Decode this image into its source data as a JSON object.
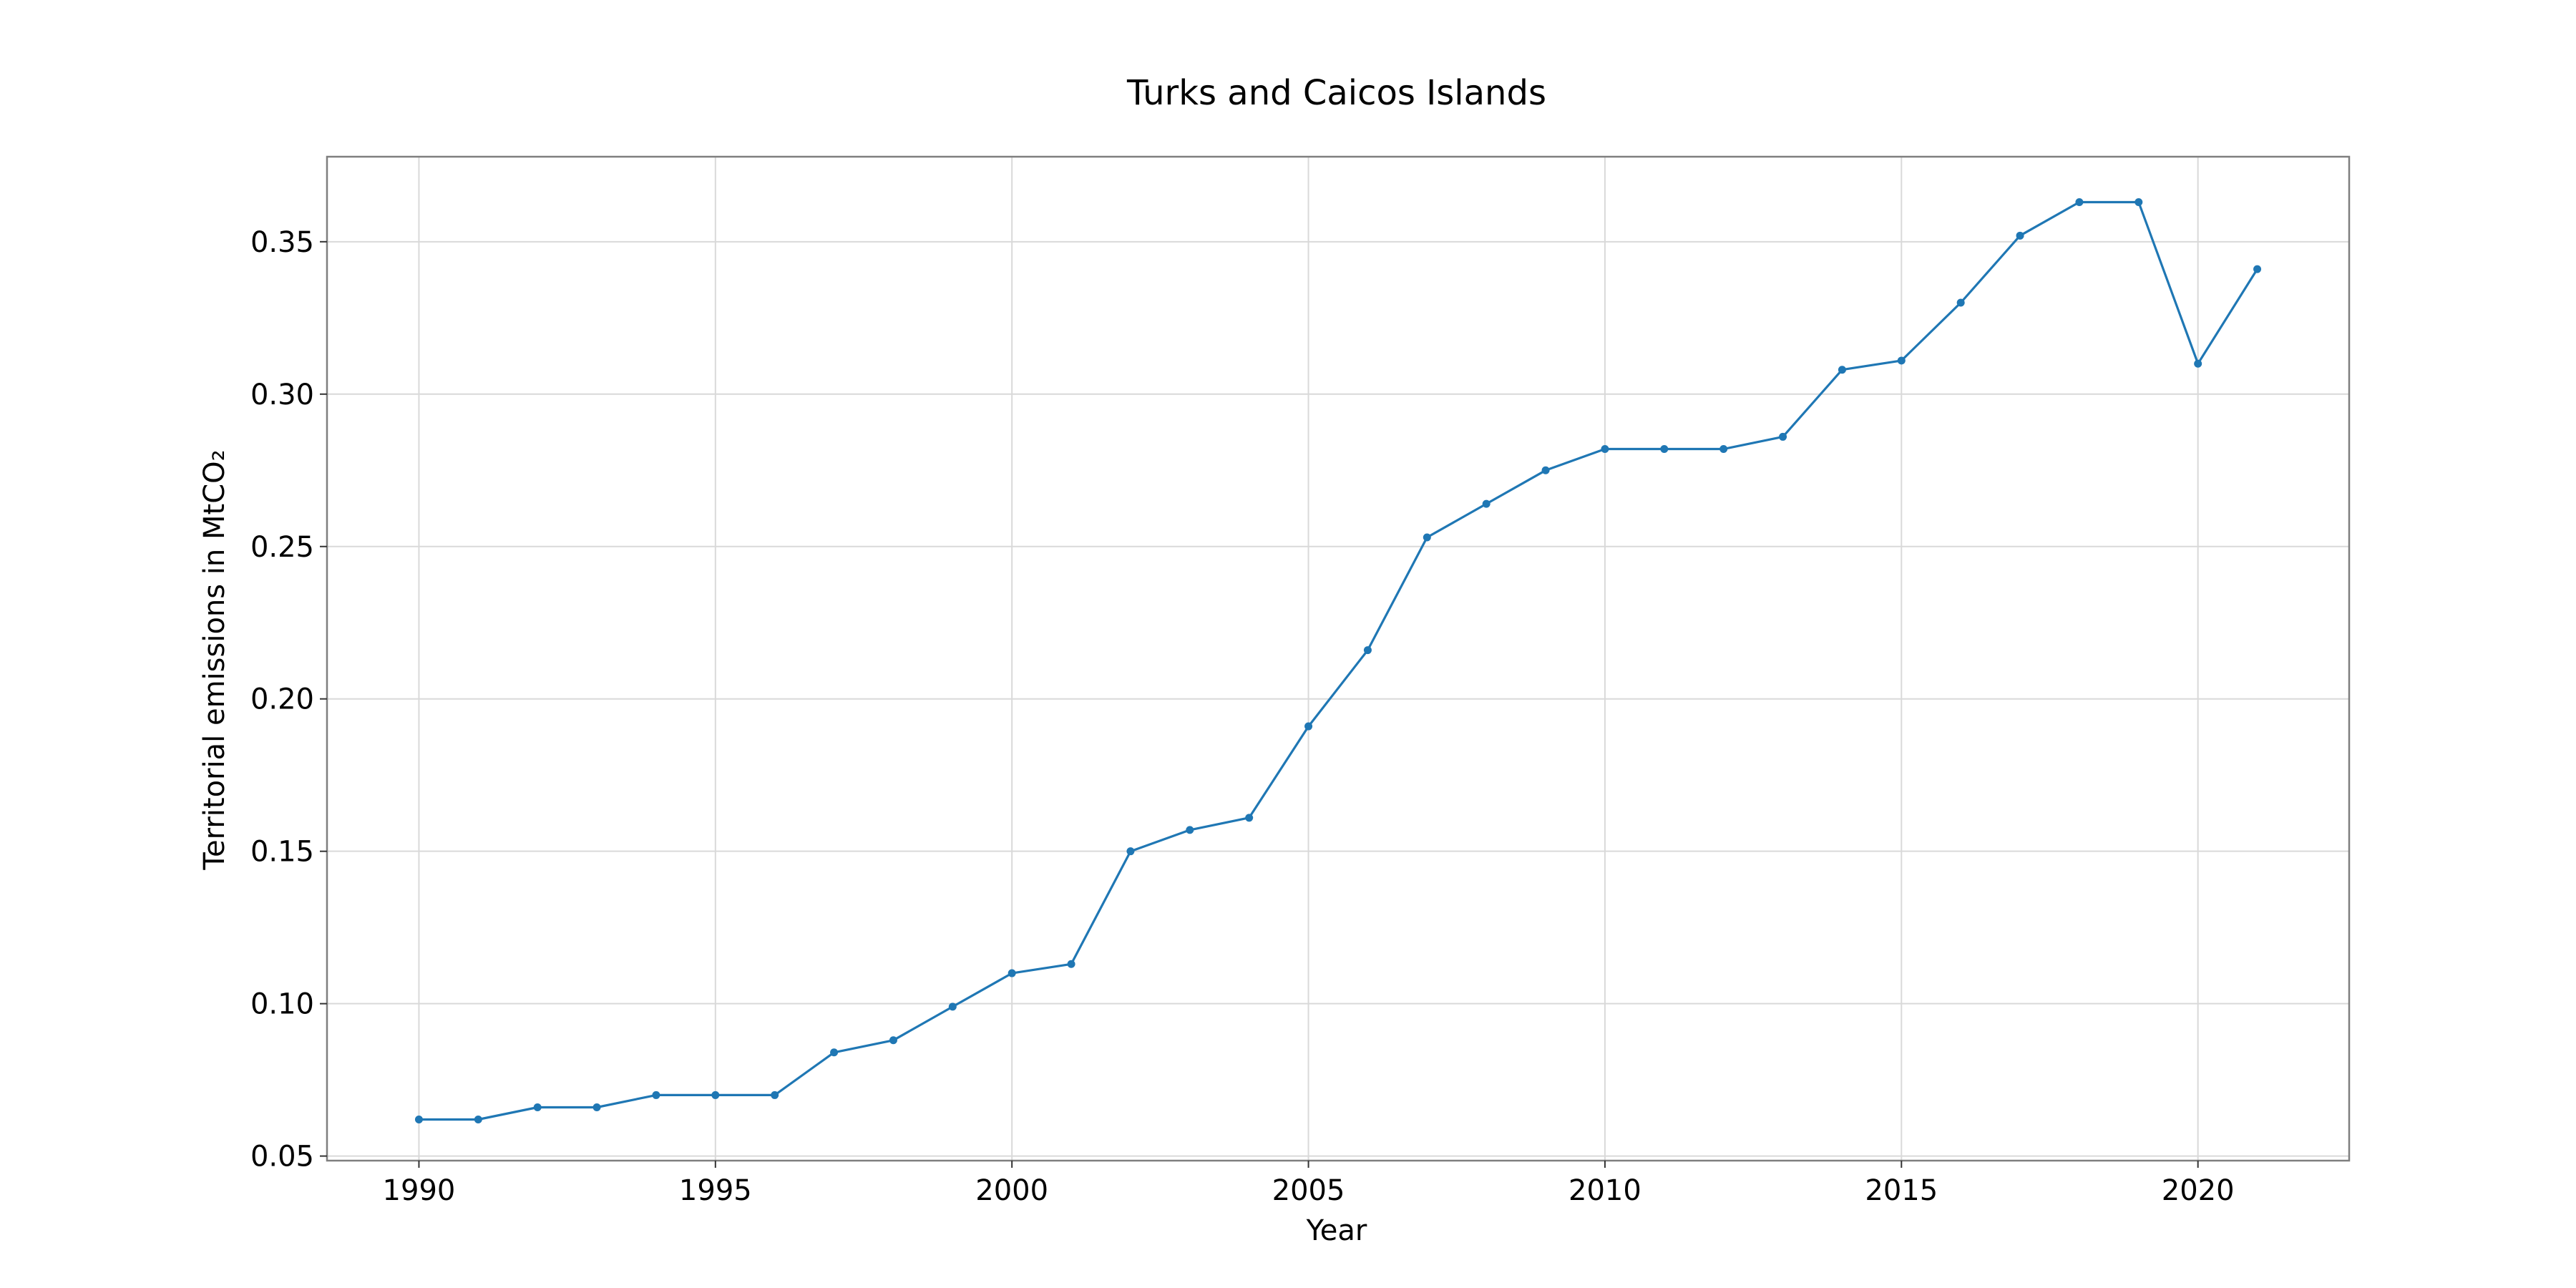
{
  "chart_data": {
    "type": "line",
    "title": "Turks and Caicos Islands",
    "xlabel": "Year",
    "ylabel": "Territorial emissions in MtCO₂",
    "xlim": [
      1988.45,
      2022.55
    ],
    "ylim": [
      0.0485,
      0.3779
    ],
    "xticks": [
      1990,
      1995,
      2000,
      2005,
      2010,
      2015,
      2020
    ],
    "yticks": [
      0.05,
      0.1,
      0.15,
      0.2,
      0.25,
      0.3,
      0.35
    ],
    "ytick_labels": [
      "0.05",
      "0.10",
      "0.15",
      "0.20",
      "0.25",
      "0.30",
      "0.35"
    ],
    "grid": true,
    "legend": "none",
    "colors": {
      "series": "#1f77b4",
      "grid": "#d9d9d9",
      "frame": "#7f7f7f"
    },
    "x": [
      1990,
      1991,
      1992,
      1993,
      1994,
      1995,
      1996,
      1997,
      1998,
      1999,
      2000,
      2001,
      2002,
      2003,
      2004,
      2005,
      2006,
      2007,
      2008,
      2009,
      2010,
      2011,
      2012,
      2013,
      2014,
      2015,
      2016,
      2017,
      2018,
      2019,
      2020,
      2021
    ],
    "series": [
      {
        "values": [
          0.062,
          0.062,
          0.066,
          0.066,
          0.07,
          0.07,
          0.07,
          0.084,
          0.088,
          0.099,
          0.11,
          0.113,
          0.15,
          0.157,
          0.161,
          0.191,
          0.216,
          0.253,
          0.264,
          0.275,
          0.282,
          0.282,
          0.282,
          0.286,
          0.308,
          0.311,
          0.33,
          0.352,
          0.363,
          0.363,
          0.31,
          0.341
        ]
      }
    ]
  }
}
